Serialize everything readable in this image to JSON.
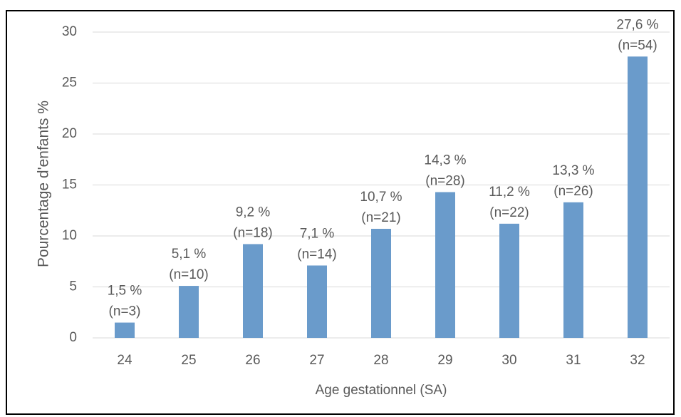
{
  "chart_data": {
    "type": "bar",
    "x_label": "Age gestationnel (SA)",
    "y_label": "Pourcentage d'enfants %",
    "categories": [
      "24",
      "25",
      "26",
      "27",
      "28",
      "29",
      "30",
      "31",
      "32"
    ],
    "values": [
      1.5,
      5.1,
      9.2,
      7.1,
      10.7,
      14.3,
      11.2,
      13.3,
      27.6
    ],
    "value_labels": [
      "1,5 %",
      "5,1 %",
      "9,2 %",
      "7,1 %",
      "10,7 %",
      "14,3 %",
      "11,2 %",
      "13,3 %",
      "27,6 %"
    ],
    "annotations": [
      "(n=3)",
      "(n=10)",
      "(n=18)",
      "(n=14)",
      "(n=21)",
      "(n=28)",
      "(n=22)",
      "(n=26)",
      "(n=54)"
    ],
    "color": "#6a9bcb",
    "ylim": [
      0,
      30
    ],
    "yticks": [
      0,
      5,
      10,
      15,
      20,
      25,
      30
    ],
    "grid": true
  }
}
